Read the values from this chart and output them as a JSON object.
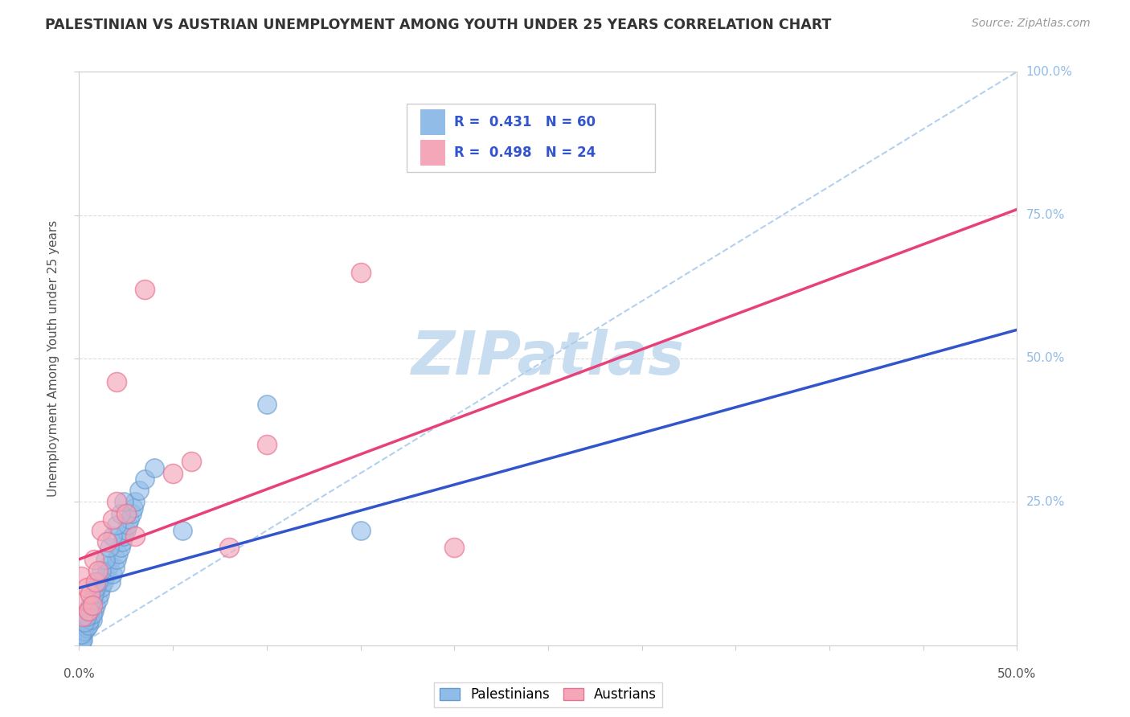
{
  "title": "PALESTINIAN VS AUSTRIAN UNEMPLOYMENT AMONG YOUTH UNDER 25 YEARS CORRELATION CHART",
  "source": "Source: ZipAtlas.com",
  "ylabel": "Unemployment Among Youth under 25 years",
  "ytick_labels": [
    "0.0%",
    "25.0%",
    "50.0%",
    "75.0%",
    "100.0%"
  ],
  "ytick_values": [
    0,
    25,
    50,
    75,
    100
  ],
  "xlim": [
    0,
    50
  ],
  "ylim": [
    0,
    100
  ],
  "r_blue": 0.431,
  "n_blue": 60,
  "r_pink": 0.498,
  "n_pink": 24,
  "blue_color": "#92bce8",
  "pink_color": "#f4a7b9",
  "blue_edge": "#6699cc",
  "pink_edge": "#e87090",
  "trend_blue": "#3355cc",
  "trend_pink": "#e8417a",
  "ref_line_color": "#aaccee",
  "watermark": "ZIPatlas",
  "watermark_color": "#c8ddf0",
  "legend_r_color": "#3355cc",
  "blue_line_x": [
    0,
    50
  ],
  "blue_line_y": [
    10,
    55
  ],
  "pink_line_x": [
    0,
    50
  ],
  "pink_line_y": [
    15,
    76
  ],
  "blue_scatter": [
    [
      0.1,
      1.5
    ],
    [
      0.2,
      2.0
    ],
    [
      0.15,
      1.0
    ],
    [
      0.3,
      3.0
    ],
    [
      0.1,
      0.5
    ],
    [
      0.2,
      1.0
    ],
    [
      0.3,
      2.5
    ],
    [
      0.4,
      3.0
    ],
    [
      0.5,
      4.0
    ],
    [
      0.1,
      2.0
    ],
    [
      0.6,
      5.0
    ],
    [
      0.4,
      6.0
    ],
    [
      0.7,
      4.5
    ],
    [
      0.8,
      6.0
    ],
    [
      0.9,
      7.0
    ],
    [
      1.0,
      8.0
    ],
    [
      1.1,
      9.0
    ],
    [
      0.5,
      3.5
    ],
    [
      0.6,
      4.5
    ],
    [
      0.7,
      5.5
    ],
    [
      1.2,
      10.0
    ],
    [
      1.3,
      11.0
    ],
    [
      1.4,
      12.0
    ],
    [
      1.5,
      13.0
    ],
    [
      1.6,
      14.0
    ],
    [
      1.7,
      11.0
    ],
    [
      1.8,
      12.5
    ],
    [
      1.9,
      13.5
    ],
    [
      2.0,
      15.0
    ],
    [
      2.1,
      16.0
    ],
    [
      2.2,
      17.0
    ],
    [
      2.3,
      18.0
    ],
    [
      2.4,
      19.0
    ],
    [
      2.5,
      20.0
    ],
    [
      2.6,
      21.0
    ],
    [
      2.7,
      22.0
    ],
    [
      2.8,
      23.0
    ],
    [
      2.9,
      24.0
    ],
    [
      3.0,
      25.0
    ],
    [
      3.2,
      27.0
    ],
    [
      0.3,
      4.0
    ],
    [
      0.4,
      5.0
    ],
    [
      0.5,
      6.0
    ],
    [
      0.6,
      7.0
    ],
    [
      0.7,
      8.0
    ],
    [
      0.8,
      9.0
    ],
    [
      0.9,
      10.0
    ],
    [
      1.0,
      11.0
    ],
    [
      1.2,
      13.0
    ],
    [
      1.4,
      15.0
    ],
    [
      1.6,
      17.0
    ],
    [
      1.8,
      19.0
    ],
    [
      2.0,
      21.0
    ],
    [
      2.2,
      23.0
    ],
    [
      2.4,
      25.0
    ],
    [
      3.5,
      29.0
    ],
    [
      4.0,
      31.0
    ],
    [
      5.5,
      20.0
    ],
    [
      10.0,
      42.0
    ],
    [
      15.0,
      20.0
    ]
  ],
  "pink_scatter": [
    [
      0.1,
      12.0
    ],
    [
      0.2,
      5.0
    ],
    [
      0.3,
      8.0
    ],
    [
      0.4,
      10.0
    ],
    [
      0.5,
      6.0
    ],
    [
      0.6,
      9.0
    ],
    [
      0.7,
      7.0
    ],
    [
      0.8,
      15.0
    ],
    [
      0.9,
      11.0
    ],
    [
      1.0,
      13.0
    ],
    [
      1.2,
      20.0
    ],
    [
      1.5,
      18.0
    ],
    [
      1.8,
      22.0
    ],
    [
      2.0,
      25.0
    ],
    [
      2.5,
      23.0
    ],
    [
      3.0,
      19.0
    ],
    [
      2.0,
      46.0
    ],
    [
      3.5,
      62.0
    ],
    [
      5.0,
      30.0
    ],
    [
      6.0,
      32.0
    ],
    [
      10.0,
      35.0
    ],
    [
      15.0,
      65.0
    ],
    [
      8.0,
      17.0
    ],
    [
      20.0,
      17.0
    ]
  ]
}
